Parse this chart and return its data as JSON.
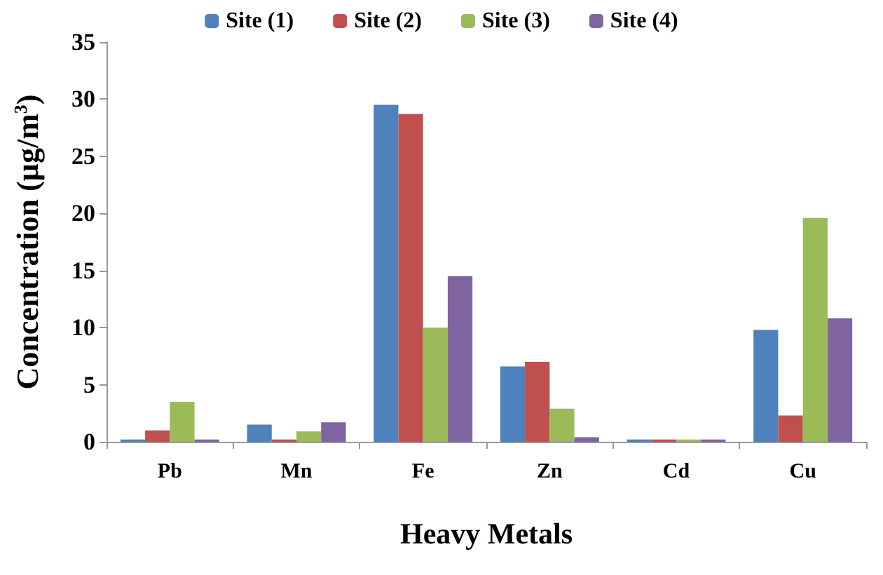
{
  "chart_data": {
    "type": "bar",
    "xlabel": "Heavy Metals",
    "ylabel": "Concentration (µg/m$^{3}$)",
    "categories": [
      "Pb",
      "Mn",
      "Fe",
      "Zn",
      "Cd",
      "Cu"
    ],
    "series": [
      {
        "name": "Site (1)",
        "color": "#4f81bd",
        "values": [
          0.2,
          1.5,
          29.5,
          6.6,
          0.2,
          9.8
        ]
      },
      {
        "name": "Site (2)",
        "color": "#c0504d",
        "values": [
          1.0,
          0.2,
          28.7,
          7.0,
          0.2,
          2.3
        ]
      },
      {
        "name": "Site (3)",
        "color": "#9bbb59",
        "values": [
          3.5,
          0.9,
          10,
          2.9,
          0.2,
          19.6
        ]
      },
      {
        "name": "Site (4)",
        "color": "#8064a2",
        "values": [
          0.2,
          1.7,
          14.5,
          0.4,
          0.2,
          10.8
        ]
      }
    ],
    "ylim": [
      0,
      35
    ],
    "yticks": [
      0,
      5,
      10,
      15,
      20,
      25,
      30,
      35
    ],
    "grid": false,
    "legend": "top"
  }
}
